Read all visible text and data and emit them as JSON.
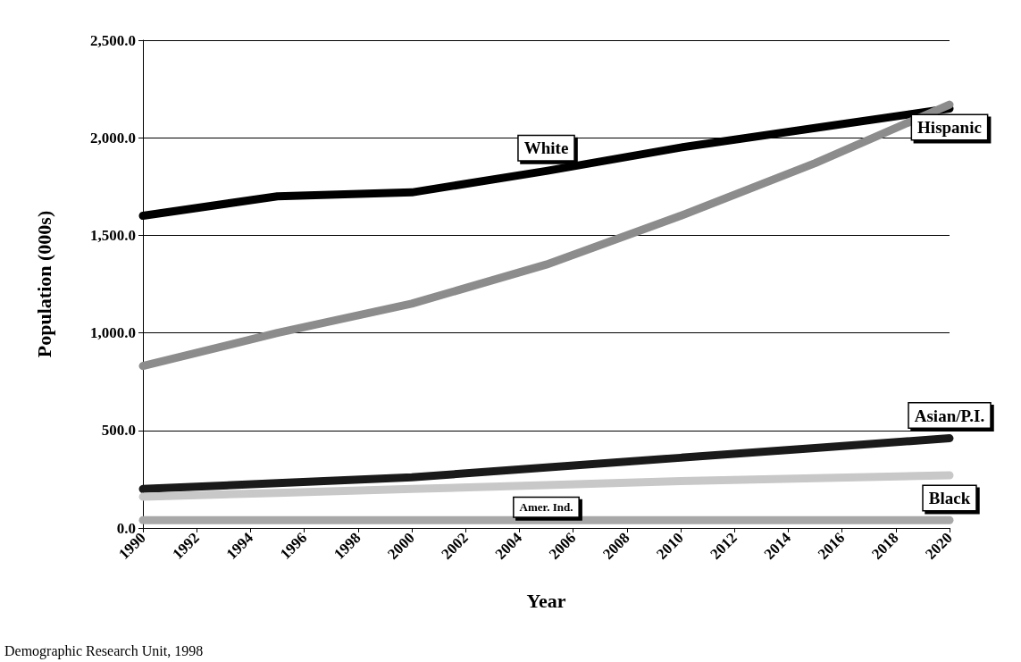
{
  "chart_data": {
    "type": "line",
    "xlabel": "Year",
    "ylabel": "Population (000s)",
    "x": [
      1990,
      1995,
      2000,
      2005,
      2010,
      2015,
      2020
    ],
    "series": [
      {
        "name": "White",
        "color": "#000000",
        "values": [
          1600,
          1700,
          1720,
          1830,
          1950,
          2050,
          2150
        ]
      },
      {
        "name": "Hispanic",
        "color": "#8c8c8c",
        "values": [
          830,
          1000,
          1150,
          1350,
          1600,
          1870,
          2170
        ]
      },
      {
        "name": "Asian/P.I.",
        "color": "#1a1a1a",
        "values": [
          200,
          230,
          260,
          310,
          360,
          410,
          460
        ]
      },
      {
        "name": "Black",
        "color": "#c8c8c8",
        "values": [
          160,
          180,
          200,
          220,
          240,
          255,
          270
        ]
      },
      {
        "name": "Amer. Ind.",
        "color": "#a8a8a8",
        "values": [
          40,
          40,
          40,
          40,
          40,
          40,
          40
        ]
      }
    ],
    "xlim": [
      1990,
      2020
    ],
    "xticks": [
      1990,
      1992,
      1994,
      1996,
      1998,
      2000,
      2002,
      2004,
      2006,
      2008,
      2010,
      2012,
      2014,
      2016,
      2018,
      2020
    ],
    "ylim": [
      0,
      2500
    ],
    "yticks": [
      {
        "value": 0,
        "label": "0.0"
      },
      {
        "value": 500,
        "label": "500.0"
      },
      {
        "value": 1000,
        "label": "1,000.0"
      },
      {
        "value": 1500,
        "label": "1,500.0"
      },
      {
        "value": 2000,
        "label": "2,000.0"
      },
      {
        "value": 2500,
        "label": "2,500.0"
      }
    ],
    "grid": "y",
    "legend": false,
    "marker": "none",
    "line_style": "solid",
    "annotations": [
      "Demographic Research Unit, 1998"
    ]
  }
}
